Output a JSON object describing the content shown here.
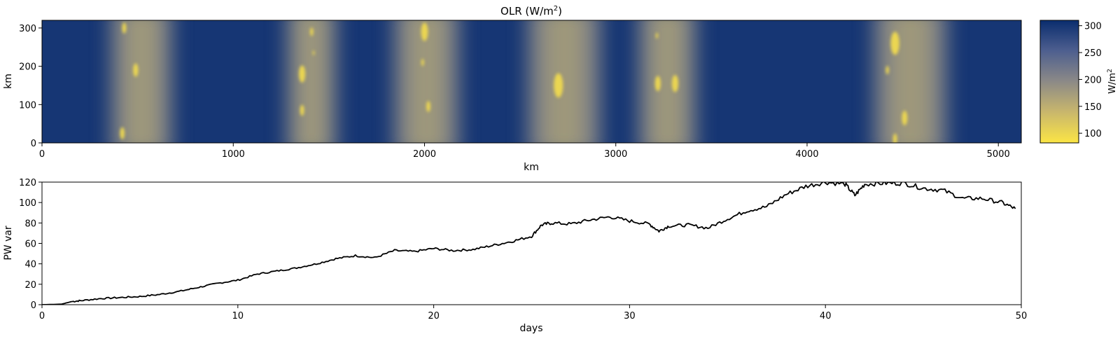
{
  "chart_data": [
    {
      "type": "heatmap",
      "title_main": "OLR (W/m",
      "title_sup": "2",
      "title_end": ")",
      "xlabel": "km",
      "ylabel": "km",
      "xlim": [
        0,
        5120
      ],
      "ylim": [
        0,
        320
      ],
      "xticks": [
        0,
        1000,
        2000,
        3000,
        4000,
        5000
      ],
      "yticks": [
        0,
        100,
        200,
        300
      ],
      "colorbar": {
        "label_main": "W/m",
        "label_sup": "2",
        "range": [
          82,
          310
        ],
        "ticks": [
          100,
          150,
          200,
          250,
          300
        ],
        "colors": [
          "#fbe545",
          "#c9b76c",
          "#8c8a87",
          "#4e5f8f",
          "#0a2d6e"
        ]
      },
      "clear_sky_value": 300,
      "convective_bands": [
        {
          "x_center": 520,
          "width": 320
        },
        {
          "x_center": 1410,
          "width": 260
        },
        {
          "x_center": 2010,
          "width": 340
        },
        {
          "x_center": 2730,
          "width": 380
        },
        {
          "x_center": 3270,
          "width": 300
        },
        {
          "x_center": 4540,
          "width": 380
        }
      ],
      "cold_cores": [
        {
          "x": 430,
          "y": 300,
          "r": 18
        },
        {
          "x": 490,
          "y": 190,
          "r": 22
        },
        {
          "x": 420,
          "y": 25,
          "r": 20
        },
        {
          "x": 1410,
          "y": 290,
          "r": 14
        },
        {
          "x": 1420,
          "y": 235,
          "r": 8
        },
        {
          "x": 1360,
          "y": 180,
          "r": 28
        },
        {
          "x": 1360,
          "y": 85,
          "r": 18
        },
        {
          "x": 2000,
          "y": 290,
          "r": 30
        },
        {
          "x": 1990,
          "y": 210,
          "r": 12
        },
        {
          "x": 2020,
          "y": 95,
          "r": 18
        },
        {
          "x": 2700,
          "y": 150,
          "r": 40
        },
        {
          "x": 3215,
          "y": 280,
          "r": 10
        },
        {
          "x": 3220,
          "y": 155,
          "r": 25
        },
        {
          "x": 3310,
          "y": 155,
          "r": 28
        },
        {
          "x": 4460,
          "y": 260,
          "r": 38
        },
        {
          "x": 4420,
          "y": 190,
          "r": 14
        },
        {
          "x": 4510,
          "y": 65,
          "r": 24
        },
        {
          "x": 4460,
          "y": 10,
          "r": 18
        }
      ]
    },
    {
      "type": "line",
      "xlabel": "days",
      "ylabel": "PW var",
      "xlim": [
        0,
        50
      ],
      "ylim": [
        0,
        120
      ],
      "xticks": [
        0,
        10,
        20,
        30,
        40,
        50
      ],
      "yticks": [
        0,
        20,
        40,
        60,
        80,
        100,
        120
      ],
      "line_color": "#000000",
      "x": [
        0,
        1,
        1.5,
        2,
        3,
        4,
        5,
        6,
        7,
        8,
        9,
        10,
        11,
        12,
        13,
        14,
        15,
        16,
        17,
        18,
        19,
        20,
        21,
        22,
        23,
        24,
        25,
        25.5,
        26,
        27,
        28,
        29,
        30,
        31,
        31.5,
        32,
        33,
        34,
        35,
        36,
        37,
        38,
        39,
        40,
        41,
        41.5,
        42,
        43,
        44,
        45,
        46,
        47,
        48,
        49,
        49.7
      ],
      "y": [
        0,
        0.5,
        3,
        4,
        6,
        7,
        8,
        10,
        13,
        17,
        21,
        24,
        30,
        33,
        36,
        40,
        45,
        48,
        46,
        53,
        52,
        55,
        53,
        54,
        58,
        62,
        67,
        78,
        80,
        79,
        83,
        86,
        82,
        79,
        72,
        77,
        78,
        75,
        84,
        92,
        96,
        108,
        116,
        120,
        118,
        107,
        118,
        119,
        119,
        114,
        112,
        104,
        104,
        100,
        94
      ]
    }
  ]
}
